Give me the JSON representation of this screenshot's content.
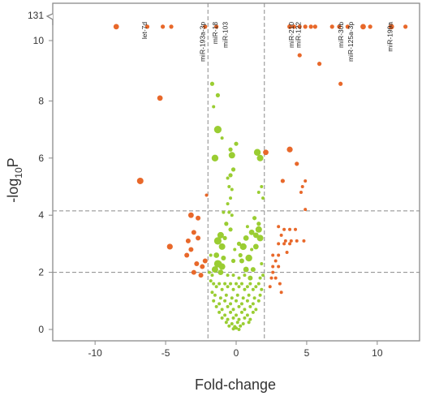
{
  "chart_data": {
    "type": "scatter",
    "xlabel": "Fold-change",
    "ylabel_main": "-log",
    "ylabel_sub": "10",
    "ylabel_tail": "P",
    "xlim": [
      -13,
      13
    ],
    "ylim": [
      0,
      11
    ],
    "y_break": {
      "lower": 10.5,
      "upper": 131
    },
    "x_ticks": [
      -10,
      -5,
      0,
      5,
      10
    ],
    "y_ticks": [
      0,
      2,
      4,
      6,
      8,
      10,
      131
    ],
    "thresholds": {
      "fold_change": [
        -2,
        2
      ],
      "p": [
        2.0,
        4.15
      ]
    },
    "colors": {
      "significant": "#e8682a",
      "not_significant": "#9acd32",
      "threshold": "#8a8a8a"
    },
    "labels": [
      {
        "text": "let-7d",
        "x": -6.2,
        "y": 10.6
      },
      {
        "text": "miR-193a-3p",
        "x": -2.1,
        "y": 10.6
      },
      {
        "text": "miR-18",
        "x": -1.2,
        "y": 10.6
      },
      {
        "text": "miR-103",
        "x": -0.5,
        "y": 10.6
      },
      {
        "text": "miR-210",
        "x": 4.2,
        "y": 10.6
      },
      {
        "text": "miR-122",
        "x": 4.7,
        "y": 10.6
      },
      {
        "text": "miR-30b",
        "x": 7.7,
        "y": 10.6
      },
      {
        "text": "miR-125a-3p",
        "x": 8.4,
        "y": 10.6
      },
      {
        "text": "miR-199a",
        "x": 11.2,
        "y": 10.6
      }
    ],
    "significant_points": [
      [
        -8.5,
        10.6,
        3.4
      ],
      [
        -6.3,
        10.6,
        2.6
      ],
      [
        -5.2,
        10.6,
        2.6
      ],
      [
        -4.6,
        10.6,
        2.6
      ],
      [
        -2.2,
        10.6,
        2.6
      ],
      [
        -1.4,
        10.6,
        2.6
      ],
      [
        3.8,
        10.6,
        3
      ],
      [
        4.1,
        10.6,
        2.6
      ],
      [
        4.5,
        10.6,
        2.6
      ],
      [
        4.9,
        10.6,
        2.6
      ],
      [
        5.3,
        10.6,
        2.6
      ],
      [
        5.6,
        10.6,
        2.6
      ],
      [
        6.8,
        10.6,
        2.6
      ],
      [
        7.3,
        10.6,
        2.6
      ],
      [
        7.9,
        10.6,
        2.6
      ],
      [
        9.0,
        10.6,
        3.4
      ],
      [
        9.5,
        10.6,
        2.6
      ],
      [
        11.0,
        10.6,
        3.4
      ],
      [
        12.0,
        10.6,
        2.6
      ],
      [
        4.5,
        9.6,
        2.6
      ],
      [
        5.9,
        9.3,
        2.6
      ],
      [
        7.4,
        8.6,
        2.6
      ],
      [
        -5.4,
        8.1,
        3.4
      ],
      [
        -6.8,
        5.2,
        4
      ],
      [
        2.1,
        6.2,
        3.4
      ],
      [
        3.8,
        6.3,
        3.6
      ],
      [
        4.3,
        5.8,
        2.6
      ],
      [
        4.9,
        5.2,
        2
      ],
      [
        4.7,
        5.0,
        2
      ],
      [
        4.6,
        4.8,
        2
      ],
      [
        3.3,
        5.2,
        2.6
      ],
      [
        4.9,
        4.2,
        2
      ],
      [
        -3.2,
        4.0,
        3.4
      ],
      [
        -2.7,
        3.9,
        3
      ],
      [
        -3.0,
        3.4,
        3
      ],
      [
        -3.4,
        3.1,
        3
      ],
      [
        -2.7,
        3.2,
        3
      ],
      [
        -3.5,
        2.6,
        3
      ],
      [
        -3.2,
        2.8,
        3
      ],
      [
        -4.7,
        2.9,
        3.6
      ],
      [
        -2.2,
        2.4,
        3
      ],
      [
        -2.4,
        2.2,
        3
      ],
      [
        -3.0,
        2.0,
        3
      ],
      [
        -2.8,
        2.3,
        3
      ],
      [
        -2.5,
        1.9,
        3
      ],
      [
        -2.1,
        4.7,
        2
      ],
      [
        3.0,
        3.6,
        2
      ],
      [
        3.4,
        3.5,
        2
      ],
      [
        3.8,
        3.5,
        2
      ],
      [
        4.2,
        3.5,
        2
      ],
      [
        3.2,
        3.3,
        2
      ],
      [
        3.5,
        3.1,
        2
      ],
      [
        3.9,
        3.1,
        2
      ],
      [
        4.3,
        3.1,
        2
      ],
      [
        3.0,
        3.0,
        2
      ],
      [
        3.4,
        3.0,
        2
      ],
      [
        3.8,
        3.0,
        2
      ],
      [
        4.8,
        3.1,
        2
      ],
      [
        3.6,
        2.7,
        2
      ],
      [
        3.0,
        2.6,
        2
      ],
      [
        2.6,
        2.6,
        2
      ],
      [
        2.8,
        2.4,
        2
      ],
      [
        2.6,
        2.2,
        2
      ],
      [
        3.0,
        2.2,
        2
      ],
      [
        2.6,
        2.0,
        2
      ],
      [
        2.5,
        1.8,
        2
      ],
      [
        3.1,
        1.6,
        2
      ],
      [
        2.4,
        1.5,
        2
      ],
      [
        2.8,
        1.8,
        2
      ],
      [
        3.2,
        1.3,
        2
      ]
    ],
    "nonsig_points": [
      [
        -1.7,
        8.6,
        2.6
      ],
      [
        -1.3,
        8.2,
        2.6
      ],
      [
        -1.6,
        7.8,
        2
      ],
      [
        -1.0,
        6.7,
        2
      ],
      [
        -1.4,
        6.0,
        2
      ],
      [
        -1.3,
        7.0,
        4.6
      ],
      [
        -1.5,
        6.0,
        4.2
      ],
      [
        -0.3,
        6.1,
        4
      ],
      [
        1.5,
        6.2,
        4.2
      ],
      [
        1.7,
        6.0,
        4
      ],
      [
        -0.4,
        6.3,
        2.6
      ],
      [
        0.0,
        6.5,
        2.6
      ],
      [
        -0.2,
        5.6,
        2.6
      ],
      [
        -0.4,
        5.4,
        2.6
      ],
      [
        -0.6,
        5.3,
        2
      ],
      [
        -0.5,
        5.0,
        2
      ],
      [
        -0.3,
        4.9,
        2
      ],
      [
        -0.4,
        4.6,
        2
      ],
      [
        -0.6,
        4.4,
        2
      ],
      [
        -0.5,
        4.1,
        2
      ],
      [
        -0.3,
        4.0,
        2
      ],
      [
        1.8,
        5.0,
        2
      ],
      [
        1.6,
        4.8,
        2
      ],
      [
        1.9,
        4.6,
        2
      ],
      [
        1.3,
        3.9,
        2.6
      ],
      [
        1.6,
        3.7,
        2.6
      ],
      [
        -1.1,
        3.3,
        4
      ],
      [
        -1.3,
        3.1,
        4.6
      ],
      [
        -1.0,
        2.9,
        4
      ],
      [
        -1.4,
        2.6,
        3.4
      ],
      [
        -1.2,
        2.3,
        3.4
      ],
      [
        -1.5,
        2.1,
        4
      ],
      [
        -1.1,
        2.0,
        3.4
      ],
      [
        -1.3,
        2.3,
        4.6
      ],
      [
        -1.0,
        2.2,
        4
      ],
      [
        -0.9,
        2.5,
        3
      ],
      [
        0.5,
        2.9,
        4.2
      ],
      [
        0.9,
        2.5,
        4.2
      ],
      [
        0.7,
        3.2,
        3.4
      ],
      [
        1.1,
        3.4,
        3.4
      ],
      [
        1.4,
        3.3,
        3.4
      ],
      [
        1.6,
        3.5,
        4
      ],
      [
        1.7,
        3.2,
        4
      ],
      [
        1.4,
        2.9,
        3.4
      ],
      [
        0.7,
        2.1,
        3.4
      ],
      [
        0.4,
        2.4,
        3
      ],
      [
        1.0,
        1.8,
        3
      ],
      [
        1.2,
        2.1,
        3
      ],
      [
        -0.7,
        3.7,
        2.6
      ],
      [
        -0.4,
        3.5,
        2.6
      ],
      [
        -0.8,
        3.2,
        2.6
      ],
      [
        0.2,
        3.0,
        2.6
      ],
      [
        0.3,
        2.6,
        2.6
      ],
      [
        -0.2,
        2.4,
        2.6
      ],
      [
        -1.8,
        1.7,
        2
      ],
      [
        -1.6,
        1.6,
        2
      ],
      [
        -1.4,
        1.5,
        2
      ],
      [
        -1.2,
        1.6,
        2
      ],
      [
        -1.0,
        1.4,
        2
      ],
      [
        -0.8,
        1.6,
        2
      ],
      [
        -0.6,
        1.5,
        2
      ],
      [
        -0.4,
        1.6,
        2
      ],
      [
        -0.2,
        1.4,
        2
      ],
      [
        0.0,
        1.6,
        2
      ],
      [
        0.2,
        1.5,
        2
      ],
      [
        0.4,
        1.6,
        2
      ],
      [
        0.6,
        1.4,
        2
      ],
      [
        0.8,
        1.5,
        2
      ],
      [
        1.0,
        1.6,
        2
      ],
      [
        1.2,
        1.4,
        2
      ],
      [
        1.4,
        1.5,
        2
      ],
      [
        1.6,
        1.6,
        2
      ],
      [
        1.8,
        1.4,
        2
      ],
      [
        -1.7,
        1.3,
        2
      ],
      [
        -1.5,
        1.2,
        2
      ],
      [
        -1.1,
        1.1,
        2
      ],
      [
        -0.7,
        1.2,
        2
      ],
      [
        -0.3,
        1.1,
        2
      ],
      [
        0.1,
        1.2,
        2
      ],
      [
        0.5,
        1.1,
        2
      ],
      [
        0.9,
        1.2,
        2
      ],
      [
        1.3,
        1.1,
        2
      ],
      [
        1.7,
        1.2,
        2
      ],
      [
        -1.6,
        1.0,
        2
      ],
      [
        -1.2,
        0.9,
        2
      ],
      [
        -0.8,
        1.0,
        2
      ],
      [
        -0.4,
        0.9,
        2
      ],
      [
        0.0,
        1.0,
        2
      ],
      [
        0.4,
        0.9,
        2
      ],
      [
        0.8,
        1.0,
        2
      ],
      [
        1.2,
        0.9,
        2
      ],
      [
        1.6,
        1.0,
        2
      ],
      [
        -1.4,
        0.8,
        2
      ],
      [
        -1.0,
        0.7,
        2
      ],
      [
        -0.6,
        0.8,
        2
      ],
      [
        -0.2,
        0.7,
        2
      ],
      [
        0.2,
        0.8,
        2
      ],
      [
        0.6,
        0.7,
        2
      ],
      [
        1.0,
        0.8,
        2
      ],
      [
        1.4,
        0.7,
        2
      ],
      [
        -1.2,
        0.6,
        2
      ],
      [
        -0.8,
        0.5,
        2
      ],
      [
        -0.4,
        0.6,
        2
      ],
      [
        0.0,
        0.5,
        2
      ],
      [
        0.4,
        0.6,
        2
      ],
      [
        0.8,
        0.5,
        2
      ],
      [
        1.2,
        0.6,
        2
      ],
      [
        -1.0,
        0.4,
        2
      ],
      [
        -0.6,
        0.35,
        2
      ],
      [
        -0.2,
        0.4,
        2
      ],
      [
        0.2,
        0.35,
        2
      ],
      [
        0.6,
        0.4,
        2
      ],
      [
        1.0,
        0.35,
        2
      ],
      [
        -0.7,
        0.25,
        2
      ],
      [
        -0.3,
        0.2,
        2
      ],
      [
        0.1,
        0.25,
        2
      ],
      [
        0.5,
        0.2,
        2
      ],
      [
        0.9,
        0.25,
        2
      ],
      [
        -0.5,
        0.12,
        2
      ],
      [
        -0.1,
        0.1,
        2
      ],
      [
        0.3,
        0.12,
        2
      ],
      [
        0.0,
        0.05,
        2
      ],
      [
        0.2,
        0.0,
        2
      ],
      [
        -0.2,
        0.02,
        2
      ],
      [
        -1.9,
        2.0,
        2
      ],
      [
        -1.7,
        1.9,
        2
      ],
      [
        1.9,
        1.9,
        2
      ],
      [
        1.7,
        1.8,
        2
      ],
      [
        -1.8,
        2.6,
        2
      ],
      [
        1.8,
        2.3,
        2
      ],
      [
        -0.2,
        1.9,
        2
      ],
      [
        0.2,
        1.8,
        2
      ],
      [
        -0.6,
        1.9,
        2
      ],
      [
        0.6,
        1.9,
        2
      ],
      [
        1.1,
        2.8,
        2
      ],
      [
        -0.1,
        2.8,
        2
      ],
      [
        0.8,
        3.6,
        2
      ],
      [
        -0.9,
        4.1,
        2
      ]
    ]
  }
}
